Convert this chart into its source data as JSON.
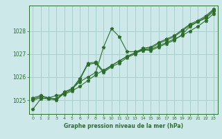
{
  "xlabel": "Graphe pression niveau de la mer (hPa)",
  "bg_color": "#cce8e8",
  "grid_color": "#aacece",
  "line_color": "#2d6e2d",
  "marker": "*",
  "xlim": [
    -0.5,
    23.5
  ],
  "ylim": [
    1024.4,
    1029.1
  ],
  "yticks": [
    1025,
    1026,
    1027,
    1028
  ],
  "xticks": [
    0,
    1,
    2,
    3,
    4,
    5,
    6,
    7,
    8,
    9,
    10,
    11,
    12,
    13,
    14,
    15,
    16,
    17,
    18,
    19,
    20,
    21,
    22,
    23
  ],
  "series": [
    [
      1024.6,
      1025.05,
      1025.1,
      1025.2,
      1025.25,
      1025.4,
      1025.6,
      1025.85,
      1026.1,
      1026.3,
      1026.5,
      1026.7,
      1026.9,
      1027.05,
      1027.15,
      1027.2,
      1027.35,
      1027.5,
      1027.65,
      1027.8,
      1028.0,
      1028.2,
      1028.45,
      1028.75
    ],
    [
      1025.1,
      1025.2,
      1025.1,
      1025.05,
      1025.35,
      1025.5,
      1025.8,
      1026.0,
      1026.2,
      1027.3,
      1028.1,
      1027.75,
      1027.1,
      1027.1,
      1027.2,
      1027.15,
      1027.3,
      1027.45,
      1027.6,
      1027.85,
      1028.2,
      1028.4,
      1028.55,
      1028.85
    ],
    [
      1025.0,
      1025.1,
      1025.05,
      1025.0,
      1025.3,
      1025.45,
      1025.9,
      1026.55,
      1026.6,
      1026.2,
      1026.45,
      1026.6,
      1026.85,
      1027.0,
      1027.2,
      1027.25,
      1027.45,
      1027.6,
      1027.75,
      1028.0,
      1028.25,
      1028.4,
      1028.6,
      1028.9
    ],
    [
      1025.05,
      1025.15,
      1025.1,
      1025.05,
      1025.35,
      1025.5,
      1025.95,
      1026.6,
      1026.65,
      1026.25,
      1026.5,
      1026.7,
      1026.9,
      1027.05,
      1027.25,
      1027.3,
      1027.5,
      1027.65,
      1027.8,
      1028.05,
      1028.3,
      1028.45,
      1028.65,
      1028.95
    ]
  ]
}
